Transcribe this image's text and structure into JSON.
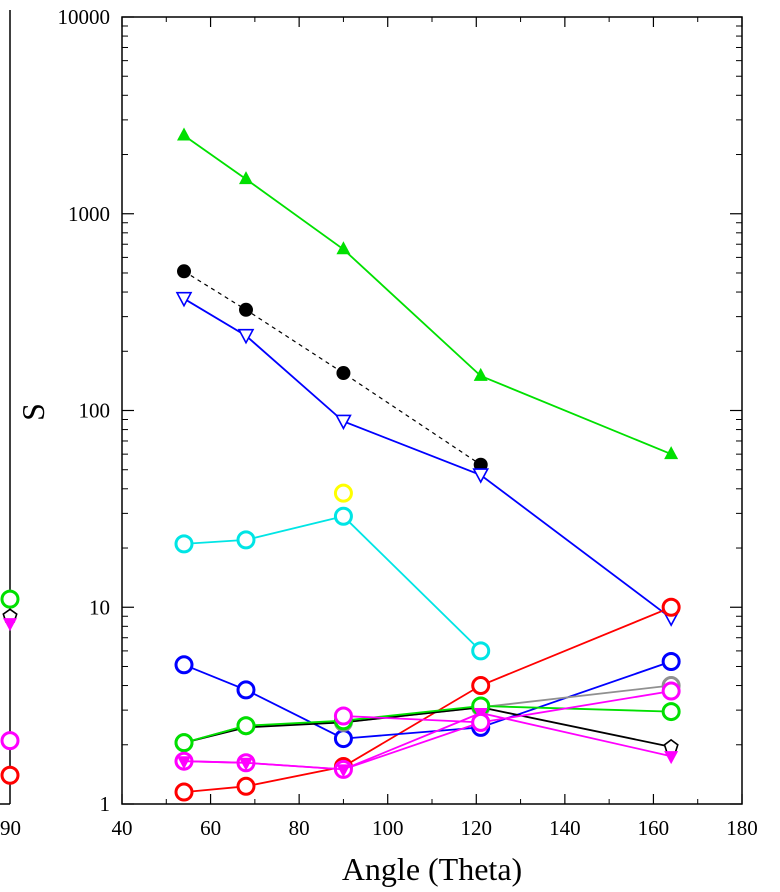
{
  "chart_data": {
    "type": "line",
    "xlabel": "Angle (Theta)",
    "ylabel": "S",
    "xlim": [
      40,
      180
    ],
    "ylim": [
      1,
      10000
    ],
    "yscale": "log",
    "x_ticks": [
      40,
      60,
      80,
      100,
      120,
      140,
      160,
      180
    ],
    "x_tick_labels": [
      "40",
      "60",
      "80",
      "100",
      "120",
      "140",
      "160",
      "180"
    ],
    "y_ticks": [
      1,
      10,
      100,
      1000,
      10000
    ],
    "y_tick_labels": [
      "1",
      "10",
      "100",
      "1000",
      "10000"
    ],
    "left_partial_panel": {
      "tick_label": "90",
      "points": [
        {
          "color": "#00e000",
          "marker": "open-circle",
          "y": 11
        },
        {
          "color": "#000000",
          "marker": "open-pentagon",
          "y": 9
        },
        {
          "color": "#ff00ff",
          "marker": "filled-triangle-down",
          "y": 8.3
        },
        {
          "color": "#ff00ff",
          "marker": "open-circle",
          "y": 2.1
        },
        {
          "color": "#ff0000",
          "marker": "open-circle",
          "y": 1.4
        }
      ]
    },
    "series": [
      {
        "color": "#00e000",
        "marker": "filled-triangle-up",
        "line": "solid",
        "x": [
          54,
          68,
          90,
          121,
          164
        ],
        "y": [
          2500,
          1500,
          660,
          150,
          60
        ]
      },
      {
        "color": "#000000",
        "marker": "filled-circle",
        "line": "dashed",
        "x": [
          54,
          68,
          90,
          121
        ],
        "y": [
          510,
          325,
          155,
          53
        ]
      },
      {
        "color": "#0000ff",
        "marker": "open-triangle-down",
        "line": "solid",
        "x": [
          54,
          68,
          90,
          121,
          164
        ],
        "y": [
          370,
          240,
          88,
          47,
          8.8
        ]
      },
      {
        "color": "#00e5e5",
        "marker": "open-circle",
        "line": "solid",
        "x": [
          54,
          68,
          90,
          121
        ],
        "y": [
          21,
          22,
          29,
          6
        ]
      },
      {
        "color": "#ffff00",
        "marker": "open-circle",
        "line": "none",
        "x": [
          90
        ],
        "y": [
          38
        ]
      },
      {
        "color": "#ff0000",
        "marker": "open-circle",
        "line": "solid",
        "x": [
          54,
          68,
          90,
          121,
          164
        ],
        "y": [
          1.15,
          1.23,
          1.55,
          4,
          10
        ]
      },
      {
        "color": "#0000ff",
        "marker": "open-circle",
        "line": "solid",
        "x": [
          54,
          68,
          90,
          121,
          164
        ],
        "y": [
          5.1,
          3.8,
          2.15,
          2.45,
          5.3
        ]
      },
      {
        "color": "#909090",
        "marker": "open-circle",
        "line": "solid",
        "x": [
          54,
          68,
          90,
          121,
          164
        ],
        "y": [
          2.05,
          2.5,
          2.6,
          3.1,
          4
        ]
      },
      {
        "color": "#000000",
        "marker": "open-pentagon",
        "line": "solid",
        "x": [
          54,
          68,
          90,
          121,
          164
        ],
        "y": [
          2.05,
          2.45,
          2.6,
          3.1,
          1.95
        ]
      },
      {
        "color": "#00e000",
        "marker": "open-circle",
        "line": "solid",
        "x": [
          54,
          68,
          90,
          121,
          164
        ],
        "y": [
          2.05,
          2.5,
          2.65,
          3.15,
          2.95
        ]
      },
      {
        "color": "#ff00ff",
        "marker": "open-circle",
        "line": "solid",
        "x": [
          54,
          68,
          90,
          121,
          164
        ],
        "y": [
          1.65,
          1.62,
          1.5,
          2.6,
          3.75
        ]
      },
      {
        "color": "#ff00ff",
        "marker": "filled-triangle-down",
        "line": "solid",
        "x": [
          54,
          68,
          90,
          121,
          164
        ],
        "y": [
          1.65,
          1.62,
          1.5,
          2.9,
          1.75
        ]
      },
      {
        "color": "#ff00ff",
        "marker": "open-circle",
        "line": "solid",
        "x": [
          90,
          121
        ],
        "y": [
          2.8,
          2.6
        ]
      }
    ]
  }
}
